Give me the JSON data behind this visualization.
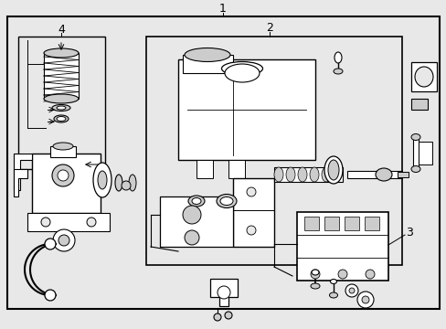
{
  "bg_color": "#e8e8e8",
  "white": "#ffffff",
  "gray_light": "#d8d8d8",
  "gray_mid": "#b0b0b0",
  "black": "#000000",
  "fig_width": 4.89,
  "fig_height": 3.6,
  "dpi": 100,
  "label1": "1",
  "label2": "2",
  "label3": "3",
  "label4": "4"
}
